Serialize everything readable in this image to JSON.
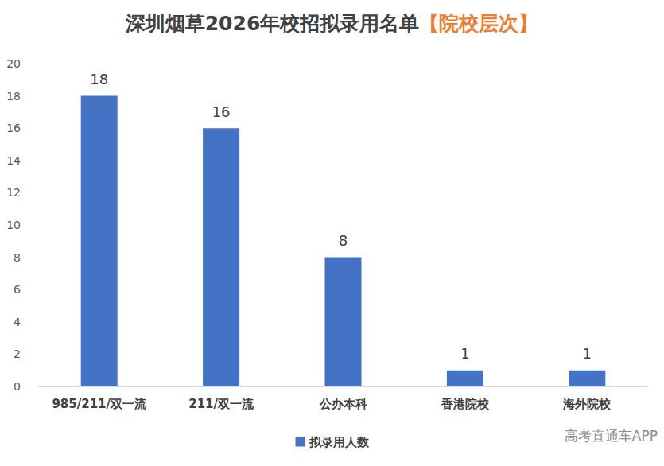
{
  "chart_data": {
    "type": "bar",
    "title": "深圳烟草2026年校招拟录用名单",
    "subtitle": "【院校层次】",
    "categories": [
      "985/211/双一流",
      "211/双一流",
      "公办本科",
      "香港院校",
      "海外院校"
    ],
    "series": [
      {
        "name": "拟录用人数",
        "color": "#4472c4",
        "values": [
          18,
          16,
          8,
          1,
          1
        ]
      }
    ],
    "ylim": [
      0,
      20
    ],
    "yticks": [
      0,
      2,
      4,
      6,
      8,
      10,
      12,
      14,
      16,
      18,
      20
    ],
    "grid": false,
    "data_labels": true,
    "legend": "bottom",
    "annotations": [
      "高考直通车APP"
    ]
  }
}
